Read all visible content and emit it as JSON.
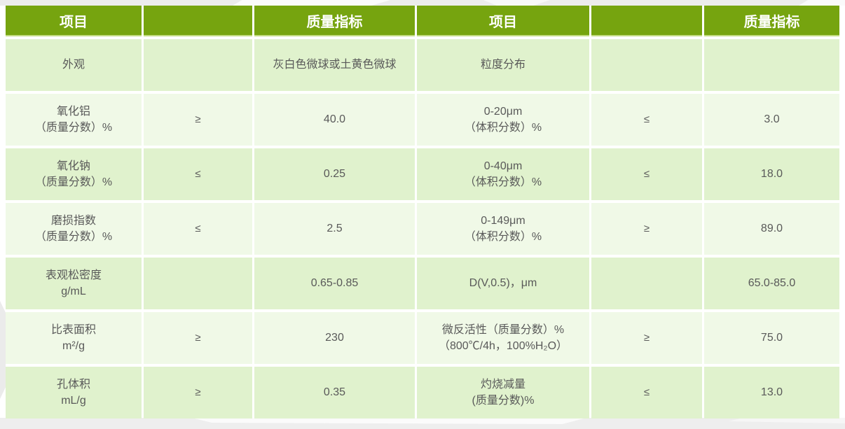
{
  "colors": {
    "header_bg": "#76a40f",
    "header_text": "#ffffff",
    "header_underline": "#c3dc82",
    "row_green": "#e0f2cd",
    "row_green_lighter": "#f0f9e7",
    "body_text": "#595959",
    "page_bg": "#ffffff",
    "decor_gray": "#ececec"
  },
  "table": {
    "headers": [
      "项目",
      "",
      "质量指标",
      "项目",
      "",
      "质量指标"
    ],
    "rows": [
      {
        "cells": [
          "外观",
          "",
          "灰白色微球或土黄色微球",
          "粒度分布",
          "",
          ""
        ]
      },
      {
        "cells": [
          "氧化铝\n（质量分数）%",
          "≥",
          "40.0",
          "0-20μm\n（体积分数）%",
          "≤",
          "3.0"
        ]
      },
      {
        "cells": [
          "氧化钠\n（质量分数）%",
          "≤",
          "0.25",
          "0-40μm\n（体积分数）%",
          "≤",
          "18.0"
        ]
      },
      {
        "cells": [
          "磨损指数\n（质量分数）%",
          "≤",
          "2.5",
          "0-149μm\n（体积分数）%",
          "≥",
          "89.0"
        ]
      },
      {
        "cells": [
          "表观松密度\ng/mL",
          "",
          "0.65-0.85",
          "D(V,0.5)，μm",
          "",
          "65.0-85.0"
        ]
      },
      {
        "cells": [
          "比表面积\nm²/g",
          "≥",
          "230",
          "微反活性（质量分数）%\n（800℃/4h，100%H₂O）",
          "≥",
          "75.0"
        ]
      },
      {
        "cells": [
          "孔体积\nmL/g",
          "≥",
          "0.35",
          "灼烧减量\n(质量分数)%",
          "≤",
          "13.0"
        ]
      }
    ]
  }
}
